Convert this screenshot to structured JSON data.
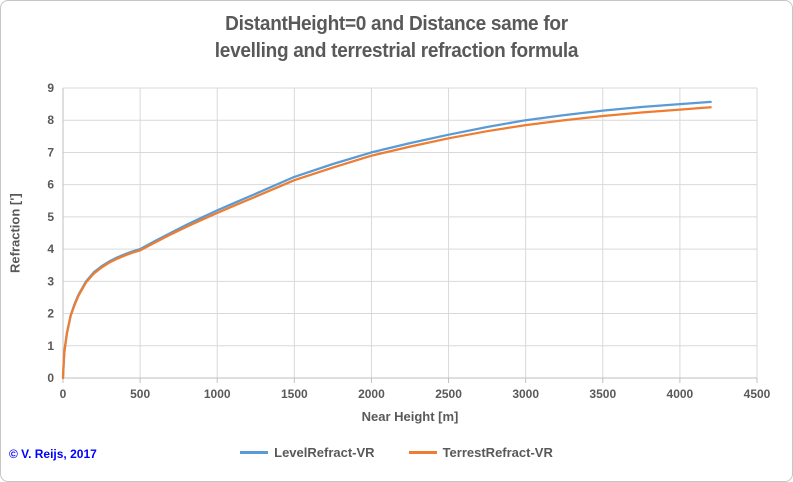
{
  "title": {
    "line1": "DistantHeight=0 and Distance same for",
    "line2": "levelling and terrestrial refraction formula"
  },
  "copyright": "© V. Reijs, 2017",
  "colors": {
    "grid": "#d9d9d9",
    "axis": "#bfbfbf",
    "text": "#595959",
    "copyright_blue": "#0000ff"
  },
  "chart_data": {
    "type": "line",
    "title": "DistantHeight=0 and Distance same for levelling and terrestrial refraction formula",
    "xlabel": "Near Height [m]",
    "ylabel": "Refraction [']",
    "xlim": [
      0,
      4500
    ],
    "ylim": [
      0,
      9
    ],
    "xticks": [
      0,
      500,
      1000,
      1500,
      2000,
      2500,
      3000,
      3500,
      4000,
      4500
    ],
    "yticks": [
      0,
      1,
      2,
      3,
      4,
      5,
      6,
      7,
      8,
      9
    ],
    "grid": true,
    "legend_position": "bottom",
    "x": [
      0,
      5,
      10,
      25,
      50,
      75,
      100,
      150,
      200,
      250,
      300,
      350,
      400,
      450,
      500,
      600,
      700,
      800,
      900,
      1000,
      1100,
      1250,
      1500,
      1750,
      2000,
      2250,
      2500,
      2750,
      3000,
      3250,
      3500,
      3750,
      4000,
      4200
    ],
    "series": [
      {
        "name": "LevelRefract-VR",
        "color": "#5b9bd5",
        "values": [
          0,
          0.55,
          0.85,
          1.4,
          1.95,
          2.3,
          2.58,
          3.0,
          3.28,
          3.47,
          3.62,
          3.74,
          3.84,
          3.93,
          4.0,
          4.26,
          4.51,
          4.75,
          4.98,
          5.2,
          5.41,
          5.72,
          6.24,
          6.64,
          7.0,
          7.29,
          7.55,
          7.79,
          8.0,
          8.16,
          8.3,
          8.41,
          8.5,
          8.57
        ]
      },
      {
        "name": "TerrestRefract-VR",
        "color": "#ed7d31",
        "values": [
          0,
          0.54,
          0.84,
          1.38,
          1.93,
          2.27,
          2.55,
          2.97,
          3.24,
          3.43,
          3.58,
          3.7,
          3.8,
          3.89,
          3.96,
          4.21,
          4.46,
          4.69,
          4.91,
          5.12,
          5.33,
          5.63,
          6.14,
          6.53,
          6.9,
          7.18,
          7.44,
          7.66,
          7.85,
          8.0,
          8.13,
          8.24,
          8.33,
          8.4
        ]
      }
    ]
  }
}
